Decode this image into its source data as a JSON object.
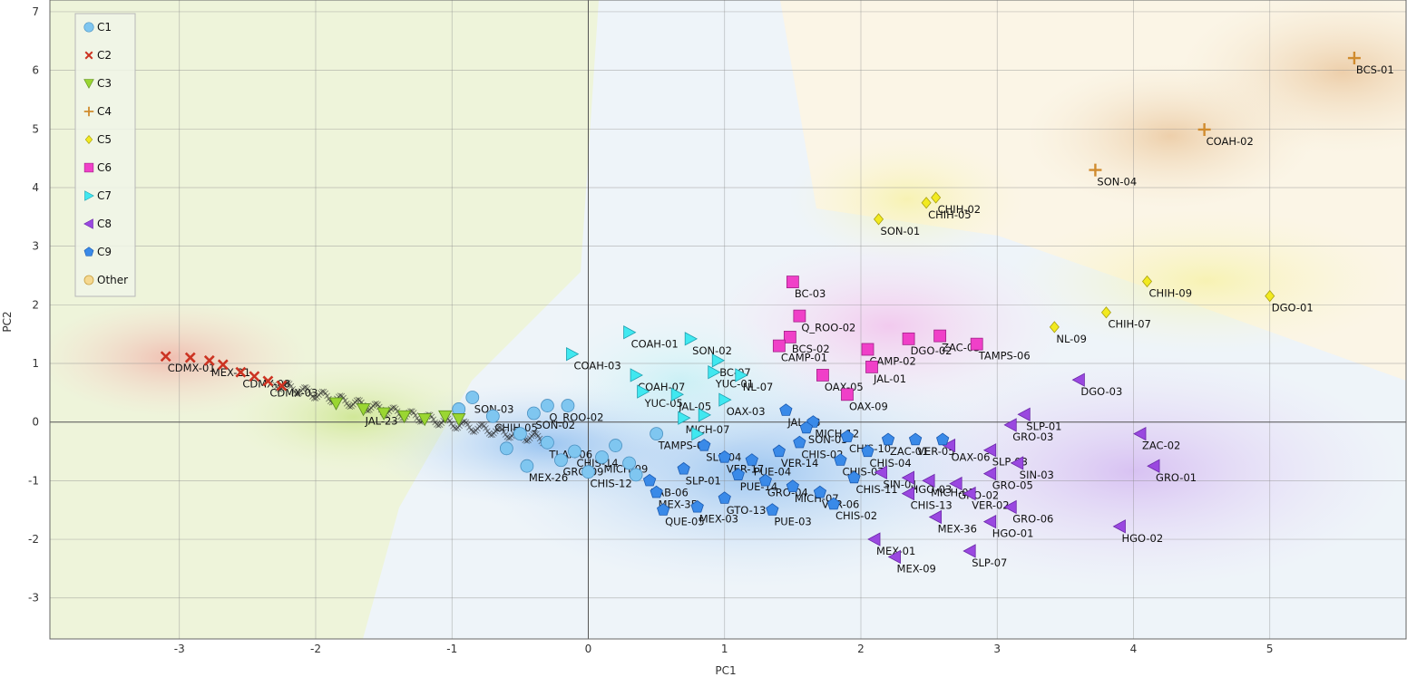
{
  "chart_data": {
    "type": "scatter",
    "xlabel": "PC1",
    "ylabel": "PC2",
    "xlim": [
      -3.95,
      6.0
    ],
    "ylim": [
      -3.7,
      7.2
    ],
    "xticks": [
      -3,
      -2,
      -1,
      0,
      1,
      2,
      3,
      4,
      5
    ],
    "yticks": [
      -3,
      -2,
      -1,
      0,
      1,
      2,
      3,
      4,
      5,
      6,
      7
    ],
    "grid": true,
    "legend": {
      "placement": "top-left",
      "entries": [
        "C1",
        "C2",
        "C3",
        "C4",
        "C5",
        "C6",
        "C7",
        "C8",
        "C9",
        "Other"
      ]
    },
    "colors": {
      "C1": "#7fc6f0",
      "C2": "#cc3322",
      "C3": "#9ad632",
      "C4": "#d08b2e",
      "C5": "#f2ea20",
      "C6": "#f040c8",
      "C7": "#40e8f0",
      "C8": "#9a48e0",
      "C9": "#3a8ae8",
      "Other": "#f5d890"
    },
    "series": [
      {
        "name": "C1",
        "marker": "circle",
        "points": [
          {
            "x": -0.85,
            "y": 0.42,
            "label": "SON-03"
          },
          {
            "x": -0.95,
            "y": 0.22,
            "label": ""
          },
          {
            "x": -0.3,
            "y": 0.28,
            "label": "Q_ROO-02"
          },
          {
            "x": -0.15,
            "y": 0.28,
            "label": ""
          },
          {
            "x": -0.4,
            "y": 0.15,
            "label": "SON-02"
          },
          {
            "x": -0.7,
            "y": 0.1,
            "label": "CHIH-05"
          },
          {
            "x": -0.5,
            "y": -0.2,
            "label": ""
          },
          {
            "x": -0.3,
            "y": -0.35,
            "label": "TLAX-06"
          },
          {
            "x": -0.6,
            "y": -0.45,
            "label": ""
          },
          {
            "x": -0.1,
            "y": -0.5,
            "label": "CHIS-14"
          },
          {
            "x": 0.1,
            "y": -0.6,
            "label": "MICH-09"
          },
          {
            "x": -0.45,
            "y": -0.75,
            "label": "MEX-26"
          },
          {
            "x": 0.3,
            "y": -0.7,
            "label": ""
          },
          {
            "x": 0.0,
            "y": -0.85,
            "label": "CHIS-12"
          },
          {
            "x": 0.5,
            "y": -0.2,
            "label": "TAMPS-05"
          },
          {
            "x": 0.2,
            "y": -0.4,
            "label": ""
          },
          {
            "x": -0.2,
            "y": -0.65,
            "label": "GRO-09"
          },
          {
            "x": 0.35,
            "y": -0.9,
            "label": ""
          }
        ]
      },
      {
        "name": "C2",
        "marker": "x",
        "points": [
          {
            "x": -3.1,
            "y": 1.12,
            "label": "CDMX-01"
          },
          {
            "x": -2.92,
            "y": 1.1,
            "label": ""
          },
          {
            "x": -2.78,
            "y": 1.05,
            "label": "MEX-21"
          },
          {
            "x": -2.68,
            "y": 0.98,
            "label": ""
          },
          {
            "x": -2.55,
            "y": 0.85,
            "label": "CDMX-08"
          },
          {
            "x": -2.45,
            "y": 0.78,
            "label": ""
          },
          {
            "x": -2.35,
            "y": 0.7,
            "label": "CDMX-03"
          },
          {
            "x": -2.25,
            "y": 0.62,
            "label": ""
          }
        ]
      },
      {
        "name": "C3",
        "marker": "triangle-down",
        "points": [
          {
            "x": -1.85,
            "y": 0.32,
            "label": ""
          },
          {
            "x": -1.65,
            "y": 0.22,
            "label": "JAL-23"
          },
          {
            "x": -1.5,
            "y": 0.15,
            "label": ""
          },
          {
            "x": -1.35,
            "y": 0.1,
            "label": ""
          },
          {
            "x": -1.2,
            "y": 0.05,
            "label": ""
          },
          {
            "x": -1.05,
            "y": 0.1,
            "label": ""
          },
          {
            "x": -0.95,
            "y": 0.05,
            "label": ""
          }
        ]
      },
      {
        "name": "C4",
        "marker": "plus",
        "points": [
          {
            "x": 5.62,
            "y": 6.21,
            "label": "BCS-01"
          },
          {
            "x": 4.52,
            "y": 4.99,
            "label": "COAH-02"
          },
          {
            "x": 3.72,
            "y": 4.3,
            "label": "SON-04"
          }
        ]
      },
      {
        "name": "C5",
        "marker": "diamond",
        "points": [
          {
            "x": 2.55,
            "y": 3.83,
            "label": "CHIH-02"
          },
          {
            "x": 2.48,
            "y": 3.74,
            "label": "CHIH-05"
          },
          {
            "x": 2.13,
            "y": 3.46,
            "label": "SON-01"
          },
          {
            "x": 4.1,
            "y": 2.4,
            "label": "CHIH-09"
          },
          {
            "x": 5.0,
            "y": 2.15,
            "label": "DGO-01"
          },
          {
            "x": 3.8,
            "y": 1.87,
            "label": "CHIH-07"
          },
          {
            "x": 3.42,
            "y": 1.62,
            "label": "NL-09"
          }
        ]
      },
      {
        "name": "C6",
        "marker": "square",
        "points": [
          {
            "x": 1.5,
            "y": 2.39,
            "label": "BC-03"
          },
          {
            "x": 1.55,
            "y": 1.81,
            "label": "Q_ROO-02"
          },
          {
            "x": 1.48,
            "y": 1.45,
            "label": "BCS-02"
          },
          {
            "x": 1.4,
            "y": 1.3,
            "label": "CAMP-01"
          },
          {
            "x": 2.05,
            "y": 1.24,
            "label": "CAMP-02"
          },
          {
            "x": 2.35,
            "y": 1.42,
            "label": "DGO-02"
          },
          {
            "x": 2.58,
            "y": 1.47,
            "label": "ZAC-03"
          },
          {
            "x": 2.85,
            "y": 1.33,
            "label": "TAMPS-06"
          },
          {
            "x": 2.08,
            "y": 0.94,
            "label": "JAL-01"
          },
          {
            "x": 1.72,
            "y": 0.8,
            "label": "OAX-05"
          },
          {
            "x": 1.9,
            "y": 0.47,
            "label": "OAX-09"
          }
        ]
      },
      {
        "name": "C7",
        "marker": "triangle-right",
        "points": [
          {
            "x": -0.12,
            "y": 1.16,
            "label": "COAH-03"
          },
          {
            "x": 0.3,
            "y": 1.53,
            "label": "COAH-01"
          },
          {
            "x": 0.75,
            "y": 1.42,
            "label": "SON-02"
          },
          {
            "x": 0.95,
            "y": 1.05,
            "label": "BC-07"
          },
          {
            "x": 0.92,
            "y": 0.85,
            "label": "YUC-01"
          },
          {
            "x": 1.12,
            "y": 0.8,
            "label": "NL-07"
          },
          {
            "x": 0.35,
            "y": 0.8,
            "label": "COAH-07"
          },
          {
            "x": 0.4,
            "y": 0.52,
            "label": "YUC-05"
          },
          {
            "x": 0.65,
            "y": 0.47,
            "label": "JAL-05"
          },
          {
            "x": 1.0,
            "y": 0.38,
            "label": "OAX-03"
          },
          {
            "x": 0.7,
            "y": 0.07,
            "label": "MICH-07"
          },
          {
            "x": 0.85,
            "y": 0.12,
            "label": ""
          },
          {
            "x": 0.8,
            "y": -0.2,
            "label": ""
          }
        ]
      },
      {
        "name": "C8",
        "marker": "triangle-left",
        "points": [
          {
            "x": 3.6,
            "y": 0.72,
            "label": "DGO-03"
          },
          {
            "x": 3.2,
            "y": 0.13,
            "label": "SLP-01"
          },
          {
            "x": 3.1,
            "y": -0.05,
            "label": "GRO-03"
          },
          {
            "x": 4.05,
            "y": -0.2,
            "label": "ZAC-02"
          },
          {
            "x": 4.15,
            "y": -0.75,
            "label": "GRO-01"
          },
          {
            "x": 2.95,
            "y": -0.48,
            "label": "SLP-03"
          },
          {
            "x": 3.15,
            "y": -0.7,
            "label": "SIN-03"
          },
          {
            "x": 2.65,
            "y": -0.4,
            "label": "OAX-06"
          },
          {
            "x": 2.95,
            "y": -0.88,
            "label": "GRO-05"
          },
          {
            "x": 2.15,
            "y": -0.86,
            "label": "SIN-01"
          },
          {
            "x": 2.35,
            "y": -0.95,
            "label": "HGO-03"
          },
          {
            "x": 2.5,
            "y": -1.0,
            "label": "MICH-03"
          },
          {
            "x": 2.7,
            "y": -1.05,
            "label": "GRO-02"
          },
          {
            "x": 2.35,
            "y": -1.22,
            "label": "CHIS-13"
          },
          {
            "x": 2.8,
            "y": -1.22,
            "label": "VER-02"
          },
          {
            "x": 3.1,
            "y": -1.45,
            "label": "GRO-06"
          },
          {
            "x": 2.55,
            "y": -1.62,
            "label": "MEX-36"
          },
          {
            "x": 2.95,
            "y": -1.7,
            "label": "HGO-01"
          },
          {
            "x": 3.9,
            "y": -1.78,
            "label": "HGO-02"
          },
          {
            "x": 2.1,
            "y": -2.0,
            "label": "MEX-01"
          },
          {
            "x": 2.25,
            "y": -2.3,
            "label": "MEX-09"
          },
          {
            "x": 2.8,
            "y": -2.2,
            "label": "SLP-07"
          }
        ]
      },
      {
        "name": "C9",
        "marker": "pentagon",
        "points": [
          {
            "x": 1.45,
            "y": 0.2,
            "label": "JAL-18"
          },
          {
            "x": 1.65,
            "y": 0.0,
            "label": "MICH-12"
          },
          {
            "x": 1.6,
            "y": -0.1,
            "label": "SON-03"
          },
          {
            "x": 1.9,
            "y": -0.25,
            "label": "CHIS-10"
          },
          {
            "x": 2.2,
            "y": -0.3,
            "label": "ZAC-01"
          },
          {
            "x": 2.4,
            "y": -0.3,
            "label": "VER-05"
          },
          {
            "x": 1.4,
            "y": -0.5,
            "label": "VER-14"
          },
          {
            "x": 1.2,
            "y": -0.65,
            "label": "PUE-04"
          },
          {
            "x": 1.85,
            "y": -0.65,
            "label": "CHIS-07"
          },
          {
            "x": 1.95,
            "y": -0.95,
            "label": "CHIS-11"
          },
          {
            "x": 1.0,
            "y": -0.6,
            "label": "VER-17"
          },
          {
            "x": 1.1,
            "y": -0.9,
            "label": "PUE-14"
          },
          {
            "x": 1.3,
            "y": -1.0,
            "label": "GRO-04"
          },
          {
            "x": 1.5,
            "y": -1.1,
            "label": "MICH-07"
          },
          {
            "x": 1.7,
            "y": -1.2,
            "label": "VER-06"
          },
          {
            "x": 1.8,
            "y": -1.4,
            "label": "CHIS-02"
          },
          {
            "x": 1.0,
            "y": -1.3,
            "label": "GTO-13"
          },
          {
            "x": 1.35,
            "y": -1.5,
            "label": "PUE-03"
          },
          {
            "x": 0.8,
            "y": -1.45,
            "label": "MEX-03"
          },
          {
            "x": 0.5,
            "y": -1.2,
            "label": "MEX-35"
          },
          {
            "x": 0.55,
            "y": -1.5,
            "label": "QUE-05"
          },
          {
            "x": 0.45,
            "y": -1.0,
            "label": "TAB-06"
          },
          {
            "x": 0.7,
            "y": -0.8,
            "label": "SLP-01"
          },
          {
            "x": 0.85,
            "y": -0.4,
            "label": "SLP-04"
          },
          {
            "x": 1.55,
            "y": -0.35,
            "label": "CHIS-02"
          },
          {
            "x": 2.05,
            "y": -0.5,
            "label": "CHIS-04"
          },
          {
            "x": 2.6,
            "y": -0.3,
            "label": ""
          }
        ]
      }
    ]
  }
}
